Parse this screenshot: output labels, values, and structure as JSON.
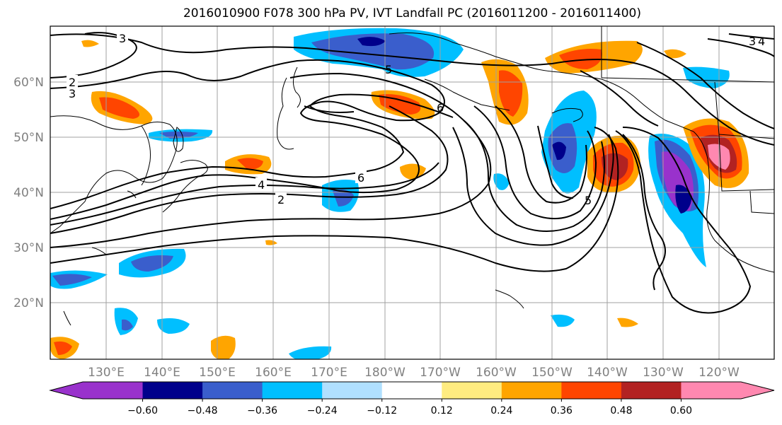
{
  "title": "2016010900 F078 300 hPa PV, IVT Landfall PC (2016011200 - 2016011400)",
  "map": {
    "lat_labels": [
      "60°N",
      "50°N",
      "40°N",
      "30°N",
      "20°N"
    ],
    "lon_labels": [
      "130°E",
      "140°E",
      "150°E",
      "160°E",
      "170°E",
      "180°W",
      "170°W",
      "160°W",
      "150°W",
      "140°W",
      "130°W",
      "120°W"
    ],
    "contour_labels": [
      "3",
      "2",
      "3",
      "5",
      "6",
      "6",
      "4",
      "2",
      "5",
      "3",
      "4"
    ]
  },
  "colorbar": {
    "colors": [
      "#9932cc",
      "#00008b",
      "#3a5ecc",
      "#00bfff",
      "#b0e0ff",
      "#ffffff",
      "#ffec80",
      "#ffa500",
      "#ff4500",
      "#b22222",
      "#ff88b0"
    ],
    "tick_labels": [
      "-0.60",
      "-0.48",
      "-0.36",
      "-0.24",
      "-0.12",
      "0.12",
      "0.24",
      "0.36",
      "0.48",
      "0.60"
    ]
  }
}
